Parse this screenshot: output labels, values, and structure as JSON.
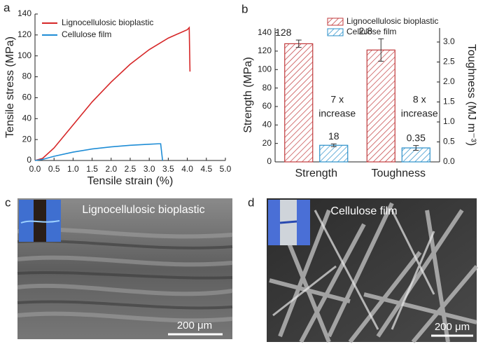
{
  "panels": {
    "labels": [
      "a",
      "b",
      "c",
      "d"
    ],
    "images": [
      {
        "caption": "Lignocellulosic bioplastic",
        "scale_bar": "200 μm"
      },
      {
        "caption": "Cellulose film",
        "scale_bar": "200 μm"
      }
    ]
  },
  "chart_data": [
    {
      "type": "line",
      "x_label": "Tensile strain (%)",
      "y_label": "Tensile stress (MPa)",
      "xlim": [
        0,
        5
      ],
      "xticks": [
        {
          "value": 0,
          "label": "0.0"
        },
        0.5,
        {
          "value": 1,
          "label": "1.0"
        },
        1.5,
        {
          "value": 2,
          "label": "2.0"
        },
        2.5,
        {
          "value": 3,
          "label": "3.0"
        },
        3.5,
        {
          "value": 4,
          "label": "4.0"
        },
        4.5,
        {
          "value": 5,
          "label": "5.0"
        }
      ],
      "ylim": [
        0,
        140
      ],
      "yticks": [
        0,
        20,
        40,
        60,
        80,
        100,
        120,
        140
      ],
      "legend": "top-left",
      "series": [
        {
          "name": "Lignocellulosic bioplastic",
          "color": "#d62728",
          "x": [
            0,
            0.2,
            0.5,
            1.0,
            1.5,
            2.0,
            2.5,
            3.0,
            3.5,
            4.0,
            4.05,
            4.07
          ],
          "values": [
            0,
            2,
            12,
            34,
            56,
            75,
            92,
            106,
            117,
            125,
            127,
            85
          ]
        },
        {
          "name": "Cellulose film",
          "color": "#1f8dd6",
          "x": [
            0,
            0.2,
            0.5,
            1.0,
            1.5,
            2.0,
            2.5,
            3.0,
            3.25,
            3.3,
            3.35
          ],
          "values": [
            0,
            1,
            4,
            8,
            11,
            13,
            14.5,
            15.5,
            16,
            16,
            0
          ]
        }
      ]
    },
    {
      "type": "bar",
      "y_label": "Strength (MPa)",
      "y2_label": "Toughness (MJ m⁻³)",
      "categories": [
        "Strength",
        "Toughness"
      ],
      "axis_by_category": [
        "y",
        "y2"
      ],
      "ylim": [
        0,
        145
      ],
      "yticks": [
        0,
        20,
        40,
        60,
        80,
        100,
        120,
        140
      ],
      "y2lim": [
        0,
        3.35
      ],
      "y2ticks": [
        {
          "value": 0,
          "label": "0.0"
        },
        0.5,
        {
          "value": 1,
          "label": "1.0"
        },
        1.5,
        {
          "value": 2,
          "label": "2.0"
        },
        2.5,
        {
          "value": 3,
          "label": "3.0"
        }
      ],
      "legend": "top-right",
      "series": [
        {
          "name": "Lignocellulosic bioplastic",
          "color": "#c0393b",
          "values": [
            128,
            2.8
          ],
          "errors": [
            4,
            0.28
          ]
        },
        {
          "name": "Cellulose film",
          "color": "#2a8fc9",
          "values": [
            18,
            0.35
          ],
          "errors": [
            1.5,
            0.06
          ]
        }
      ],
      "annotations": [
        [
          "7 x",
          "increase"
        ],
        [
          "8 x",
          "increase"
        ]
      ]
    }
  ]
}
